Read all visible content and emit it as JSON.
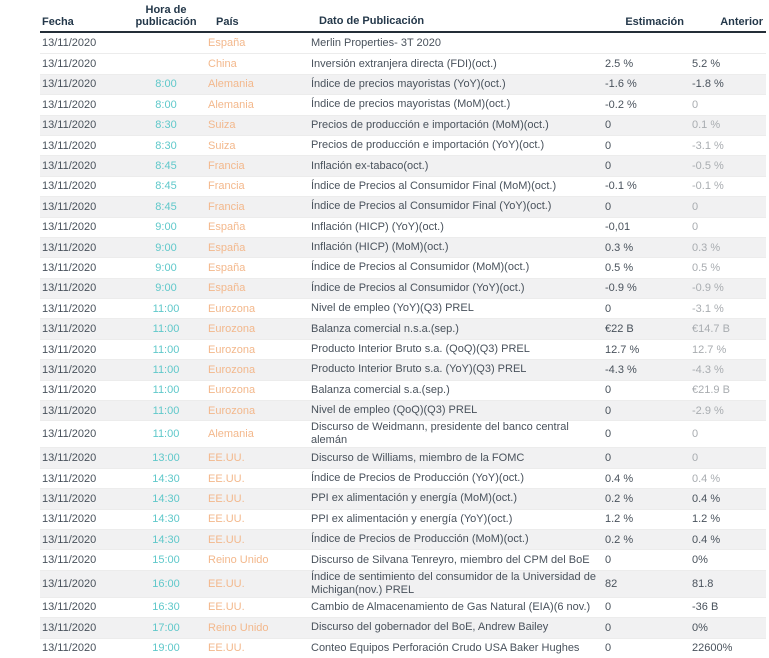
{
  "colors": {
    "header_text": "#24384a",
    "header_underline": "#242e38",
    "body_text": "#49525c",
    "muted_value_text": "#a8acb0",
    "time_accent": "#5fc8ca",
    "country_accent": "#f3b88c",
    "row_stripe": "#f1f1f2"
  },
  "table": {
    "columns": [
      {
        "key": "fecha",
        "label": "Fecha"
      },
      {
        "key": "hora",
        "label": "Hora de publicación"
      },
      {
        "key": "pais",
        "label": "País"
      },
      {
        "key": "dato",
        "label": "Dato de Publicación"
      },
      {
        "key": "estimacion",
        "label": "Estimación"
      },
      {
        "key": "anterior",
        "label": "Anterior"
      }
    ],
    "rows": [
      {
        "fecha": "13/11/2020",
        "hora": "",
        "pais": "España",
        "dato": "Merlin Properties- 3T 2020",
        "estimacion": "",
        "anterior": "",
        "anterior_muted": false
      },
      {
        "fecha": "13/11/2020",
        "hora": "",
        "pais": "China",
        "dato": "Inversión extranjera directa (FDI)(oct.)",
        "estimacion": "2.5 %",
        "anterior": "5.2 %",
        "anterior_muted": false
      },
      {
        "fecha": "13/11/2020",
        "hora": "8:00",
        "pais": "Alemania",
        "dato": "Índice de precios mayoristas (YoY)(oct.)",
        "estimacion": "-1.6 %",
        "anterior": "-1.8 %",
        "anterior_muted": false
      },
      {
        "fecha": "13/11/2020",
        "hora": "8:00",
        "pais": "Alemania",
        "dato": "Índice de precios mayoristas (MoM)(oct.)",
        "estimacion": "-0.2 %",
        "anterior": "0",
        "anterior_muted": true
      },
      {
        "fecha": "13/11/2020",
        "hora": "8:30",
        "pais": "Suiza",
        "dato": "Precios de producción e importación (MoM)(oct.)",
        "estimacion": "0",
        "anterior": "0.1 %",
        "anterior_muted": true
      },
      {
        "fecha": "13/11/2020",
        "hora": "8:30",
        "pais": "Suiza",
        "dato": "Precios de producción e importación (YoY)(oct.)",
        "estimacion": "0",
        "anterior": "-3.1 %",
        "anterior_muted": true
      },
      {
        "fecha": "13/11/2020",
        "hora": "8:45",
        "pais": "Francia",
        "dato": "Inflación ex-tabaco(oct.)",
        "estimacion": "0",
        "anterior": "-0.5 %",
        "anterior_muted": true
      },
      {
        "fecha": "13/11/2020",
        "hora": "8:45",
        "pais": "Francia",
        "dato": "Índice de Precios al Consumidor Final (MoM)(oct.)",
        "estimacion": "-0.1 %",
        "anterior": "-0.1 %",
        "anterior_muted": true
      },
      {
        "fecha": "13/11/2020",
        "hora": "8:45",
        "pais": "Francia",
        "dato": "Índice de Precios al Consumidor Final (YoY)(oct.)",
        "estimacion": "0",
        "anterior": "0",
        "anterior_muted": true
      },
      {
        "fecha": "13/11/2020",
        "hora": "9:00",
        "pais": "España",
        "dato": "Inflación (HICP) (YoY)(oct.)",
        "estimacion": "-0,01",
        "anterior": "0",
        "anterior_muted": true
      },
      {
        "fecha": "13/11/2020",
        "hora": "9:00",
        "pais": "España",
        "dato": "Inflación (HICP) (MoM)(oct.)",
        "estimacion": "0.3 %",
        "anterior": "0.3 %",
        "anterior_muted": true
      },
      {
        "fecha": "13/11/2020",
        "hora": "9:00",
        "pais": "España",
        "dato": "Índice de Precios al Consumidor (MoM)(oct.)",
        "estimacion": "0.5 %",
        "anterior": "0.5 %",
        "anterior_muted": true
      },
      {
        "fecha": "13/11/2020",
        "hora": "9:00",
        "pais": "España",
        "dato": "Índice de Precios al Consumidor (YoY)(oct.)",
        "estimacion": "-0.9 %",
        "anterior": "-0.9 %",
        "anterior_muted": true
      },
      {
        "fecha": "13/11/2020",
        "hora": "11:00",
        "pais": "Eurozona",
        "dato": "Nivel de empleo (YoY)(Q3) PREL",
        "estimacion": "0",
        "anterior": "-3.1 %",
        "anterior_muted": true
      },
      {
        "fecha": "13/11/2020",
        "hora": "11:00",
        "pais": "Eurozona",
        "dato": "Balanza comercial n.s.a.(sep.)",
        "estimacion": "€22 B",
        "anterior": "€14.7 B",
        "anterior_muted": true
      },
      {
        "fecha": "13/11/2020",
        "hora": "11:00",
        "pais": "Eurozona",
        "dato": "Producto Interior Bruto s.a. (QoQ)(Q3) PREL",
        "estimacion": "12.7 %",
        "anterior": "12.7 %",
        "anterior_muted": true
      },
      {
        "fecha": "13/11/2020",
        "hora": "11:00",
        "pais": "Eurozona",
        "dato": "Producto Interior Bruto s.a. (YoY)(Q3) PREL",
        "estimacion": "-4.3 %",
        "anterior": "-4.3 %",
        "anterior_muted": true
      },
      {
        "fecha": "13/11/2020",
        "hora": "11:00",
        "pais": "Eurozona",
        "dato": "Balanza comercial s.a.(sep.)",
        "estimacion": "0",
        "anterior": "€21.9 B",
        "anterior_muted": true
      },
      {
        "fecha": "13/11/2020",
        "hora": "11:00",
        "pais": "Eurozona",
        "dato": "Nivel de empleo (QoQ)(Q3) PREL",
        "estimacion": "0",
        "anterior": "-2.9 %",
        "anterior_muted": true
      },
      {
        "fecha": "13/11/2020",
        "hora": "11:00",
        "pais": "Alemania",
        "dato": "Discurso de Weidmann, presidente del banco central alemán",
        "estimacion": "0",
        "anterior": "0",
        "anterior_muted": true
      },
      {
        "fecha": "13/11/2020",
        "hora": "13:00",
        "pais": "EE.UU.",
        "dato": "Discurso de Williams, miembro de la FOMC",
        "estimacion": "0",
        "anterior": "0",
        "anterior_muted": true
      },
      {
        "fecha": "13/11/2020",
        "hora": "14:30",
        "pais": "EE.UU.",
        "dato": "Índice de Precios de Producción (YoY)(oct.)",
        "estimacion": "0.4 %",
        "anterior": "0.4 %",
        "anterior_muted": true
      },
      {
        "fecha": "13/11/2020",
        "hora": "14:30",
        "pais": "EE.UU.",
        "dato": "PPI ex alimentación y energía (MoM)(oct.)",
        "estimacion": "0.2 %",
        "anterior": "0.4 %",
        "anterior_muted": false
      },
      {
        "fecha": "13/11/2020",
        "hora": "14:30",
        "pais": "EE.UU.",
        "dato": "PPI ex alimentación y energía (YoY)(oct.)",
        "estimacion": "1.2 %",
        "anterior": "1.2 %",
        "anterior_muted": false
      },
      {
        "fecha": "13/11/2020",
        "hora": "14:30",
        "pais": "EE.UU.",
        "dato": "Índice de Precios de Producción (MoM)(oct.)",
        "estimacion": "0.2 %",
        "anterior": "0.4 %",
        "anterior_muted": false
      },
      {
        "fecha": "13/11/2020",
        "hora": "15:00",
        "pais": "Reino Unido",
        "dato": "Discurso de Silvana Tenreyro, miembro del CPM del BoE",
        "estimacion": "0",
        "anterior": "0%",
        "anterior_muted": false
      },
      {
        "fecha": "13/11/2020",
        "hora": "16:00",
        "pais": "EE.UU.",
        "dato": "Índice de sentimiento del consumidor de la Universidad de Michigan(nov.) PREL",
        "estimacion": "82",
        "anterior": "81.8",
        "anterior_muted": false
      },
      {
        "fecha": "13/11/2020",
        "hora": "16:30",
        "pais": "EE.UU.",
        "dato": "Cambio de Almacenamiento de Gas Natural (EIA)(6 nov.)",
        "estimacion": "0",
        "anterior": "-36 B",
        "anterior_muted": false
      },
      {
        "fecha": "13/11/2020",
        "hora": "17:00",
        "pais": "Reino Unido",
        "dato": "Discurso del gobernador del BoE, Andrew Bailey",
        "estimacion": "0",
        "anterior": "0%",
        "anterior_muted": false
      },
      {
        "fecha": "13/11/2020",
        "hora": "19:00",
        "pais": "EE.UU.",
        "dato": "Conteo Equipos Perforación Crudo USA Baker Hughes",
        "estimacion": "0",
        "anterior": "22600%",
        "anterior_muted": false
      }
    ]
  }
}
